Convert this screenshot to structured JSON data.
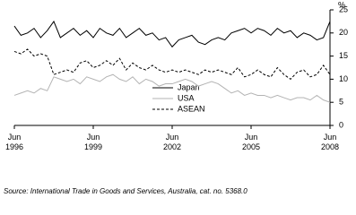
{
  "chart_data": {
    "type": "line",
    "y_label": "%",
    "source": "Source: International Trade in Goods and Services, Australia, cat. no. 5368.0",
    "categories": [
      "Jun\n1996",
      null,
      null,
      null,
      null,
      null,
      null,
      null,
      null,
      null,
      null,
      null,
      "Jun\n1999",
      null,
      null,
      null,
      null,
      null,
      null,
      null,
      null,
      null,
      null,
      null,
      "Jun\n2002",
      null,
      null,
      null,
      null,
      null,
      null,
      null,
      null,
      null,
      null,
      null,
      "Jun\n2005",
      null,
      null,
      null,
      null,
      null,
      null,
      null,
      null,
      null,
      null,
      null,
      "Jun\n2008"
    ],
    "series": [
      {
        "name": "Japan",
        "color": "#000000",
        "dash": false,
        "values": [
          21.5,
          19.5,
          20,
          21,
          19,
          20.5,
          22.5,
          19,
          20,
          21,
          19.5,
          20.5,
          19,
          21,
          20,
          19.5,
          21,
          19,
          20,
          21,
          19.5,
          20,
          18.5,
          19,
          17,
          18.5,
          19,
          19.5,
          18,
          17.5,
          18.5,
          19,
          18.5,
          20,
          20.5,
          21,
          20,
          21,
          20.5,
          19.5,
          21,
          20,
          20.5,
          19,
          20,
          19.5,
          18.5,
          19,
          22.5
        ]
      },
      {
        "name": "USA",
        "color": "#b3b3b3",
        "dash": false,
        "values": [
          6.5,
          7,
          7.5,
          7,
          8,
          7.5,
          10.5,
          10,
          9.5,
          10,
          9,
          10.5,
          10,
          9.5,
          10.5,
          11,
          10,
          9.5,
          10.5,
          9,
          10,
          9.5,
          8.5,
          9,
          9,
          9.5,
          10,
          9.5,
          8.5,
          9,
          9.5,
          9,
          8,
          7,
          7.5,
          6.5,
          7,
          6.5,
          6.5,
          6,
          6.5,
          6,
          5.5,
          6,
          6,
          5.5,
          6.5,
          5.5,
          5
        ]
      },
      {
        "name": "ASEAN",
        "color": "#000000",
        "dash": true,
        "values": [
          16,
          15.5,
          16.5,
          15,
          15.5,
          15,
          11,
          11.5,
          12,
          11.5,
          13.5,
          14,
          12.5,
          13,
          14,
          13,
          14.5,
          12,
          13.5,
          12.5,
          12,
          13,
          12,
          11.5,
          12,
          11.5,
          12,
          11.5,
          11,
          12,
          11.5,
          12,
          11.5,
          11,
          12.5,
          10.5,
          11,
          12,
          11,
          10.5,
          12.5,
          11,
          10,
          11.5,
          12,
          10.5,
          11,
          13,
          11
        ]
      }
    ],
    "ylim": [
      0,
      25
    ],
    "yticks": [
      0,
      5,
      10,
      15,
      20,
      25
    ],
    "grid": false
  }
}
